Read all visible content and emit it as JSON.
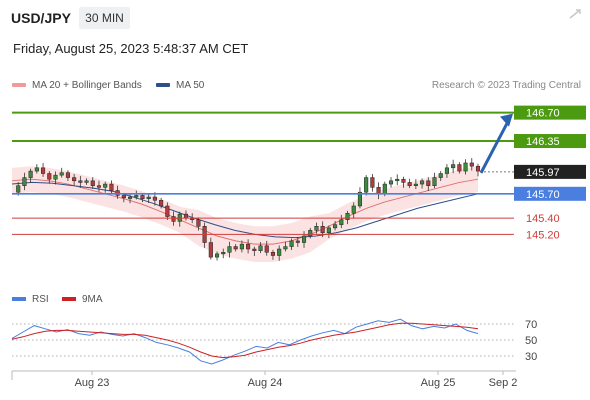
{
  "header": {
    "symbol": "USD/JPY",
    "timeframe": "30 MIN",
    "datetime": "Friday, August 25, 2023 5:48:37 AM CET",
    "copyright": "Research © 2023 Trading Central"
  },
  "legend": {
    "ma20": "MA 20 + Bollinger Bands",
    "ma50": "MA 50",
    "rsi": "RSI",
    "ma9": "9MA"
  },
  "colors": {
    "candle_up": "#3b8a3b",
    "candle_down": "#b23b3b",
    "ma20": "#e07070",
    "ma50": "#2e4f8a",
    "bollinger_fill": "#fbdede",
    "resistance": "#4c9a0f",
    "pivot": "#4a7fe0",
    "support": "#d13b3b",
    "arrow": "#2b62b0",
    "current": "#222222",
    "rsi": "#4a7fe0",
    "rsi_ma": "#cc2222"
  },
  "chart_data": [
    {
      "type": "candlestick",
      "x_ticks": [
        "Aug 23",
        "Aug 24",
        "Aug 25",
        "Sep 2"
      ],
      "ylim": [
        144.86,
        146.88
      ],
      "levels": [
        {
          "label": "146.70",
          "value": 146.7,
          "kind": "resistance"
        },
        {
          "label": "146.35",
          "value": 146.35,
          "kind": "resistance"
        },
        {
          "label": "145.97",
          "value": 145.97,
          "kind": "current"
        },
        {
          "label": "145.70",
          "value": 145.7,
          "kind": "pivot"
        },
        {
          "label": "145.40",
          "value": 145.4,
          "kind": "support"
        },
        {
          "label": "145.20",
          "value": 145.2,
          "kind": "support"
        }
      ],
      "close_path": [
        145.72,
        145.8,
        145.9,
        145.98,
        146.02,
        145.95,
        145.88,
        145.93,
        145.96,
        145.9,
        145.86,
        145.84,
        145.86,
        145.8,
        145.78,
        145.82,
        145.74,
        145.68,
        145.65,
        145.66,
        145.68,
        145.64,
        145.66,
        145.62,
        145.55,
        145.42,
        145.36,
        145.45,
        145.4,
        145.38,
        145.3,
        145.1,
        144.92,
        144.96,
        144.98,
        145.05,
        145.02,
        145.08,
        145.02,
        145.0,
        145.06,
        144.98,
        144.94,
        145.02,
        145.05,
        145.12,
        145.1,
        145.18,
        145.25,
        145.3,
        145.22,
        145.28,
        145.32,
        145.38,
        145.46,
        145.55,
        145.72,
        145.9,
        145.78,
        145.7,
        145.82,
        145.86,
        145.88,
        145.84,
        145.8,
        145.82,
        145.86,
        145.8,
        145.9,
        145.95,
        146.02,
        146.06,
        145.98,
        146.08,
        146.04,
        145.98
      ],
      "ma20": [
        145.86,
        145.88,
        145.86,
        145.82,
        145.76,
        145.7,
        145.64,
        145.57,
        145.48,
        145.38,
        145.28,
        145.18,
        145.12,
        145.08,
        145.08,
        145.12,
        145.2,
        145.3,
        145.42,
        145.52,
        145.6,
        145.66,
        145.72,
        145.78,
        145.84,
        145.88
      ],
      "ma50": [
        145.82,
        145.84,
        145.83,
        145.8,
        145.77,
        145.73,
        145.66,
        145.58,
        145.49,
        145.4,
        145.32,
        145.25,
        145.2,
        145.17,
        145.16,
        145.18,
        145.22,
        145.28,
        145.36,
        145.44,
        145.52,
        145.58,
        145.64,
        145.7
      ],
      "forecast_from": 145.97,
      "forecast_to": 146.7
    },
    {
      "type": "line",
      "name": "RSI",
      "yticks": [
        "70",
        "50",
        "30"
      ],
      "ylim": [
        15,
        85
      ],
      "rsi": [
        52,
        60,
        68,
        64,
        60,
        63,
        58,
        56,
        60,
        57,
        55,
        58,
        53,
        47,
        44,
        40,
        35,
        24,
        20,
        25,
        31,
        36,
        42,
        40,
        47,
        44,
        50,
        55,
        59,
        62,
        58,
        66,
        70,
        74,
        72,
        76,
        68,
        64,
        67,
        65,
        70,
        62,
        58
      ],
      "rsi_ma": [
        51,
        54,
        58,
        61,
        62,
        62,
        61,
        60,
        59,
        58,
        57,
        57,
        56,
        53,
        50,
        46,
        41,
        35,
        30,
        28,
        29,
        31,
        35,
        38,
        41,
        43,
        46,
        50,
        53,
        56,
        58,
        60,
        63,
        66,
        69,
        71,
        71,
        70,
        69,
        68,
        67,
        66,
        64
      ]
    }
  ]
}
